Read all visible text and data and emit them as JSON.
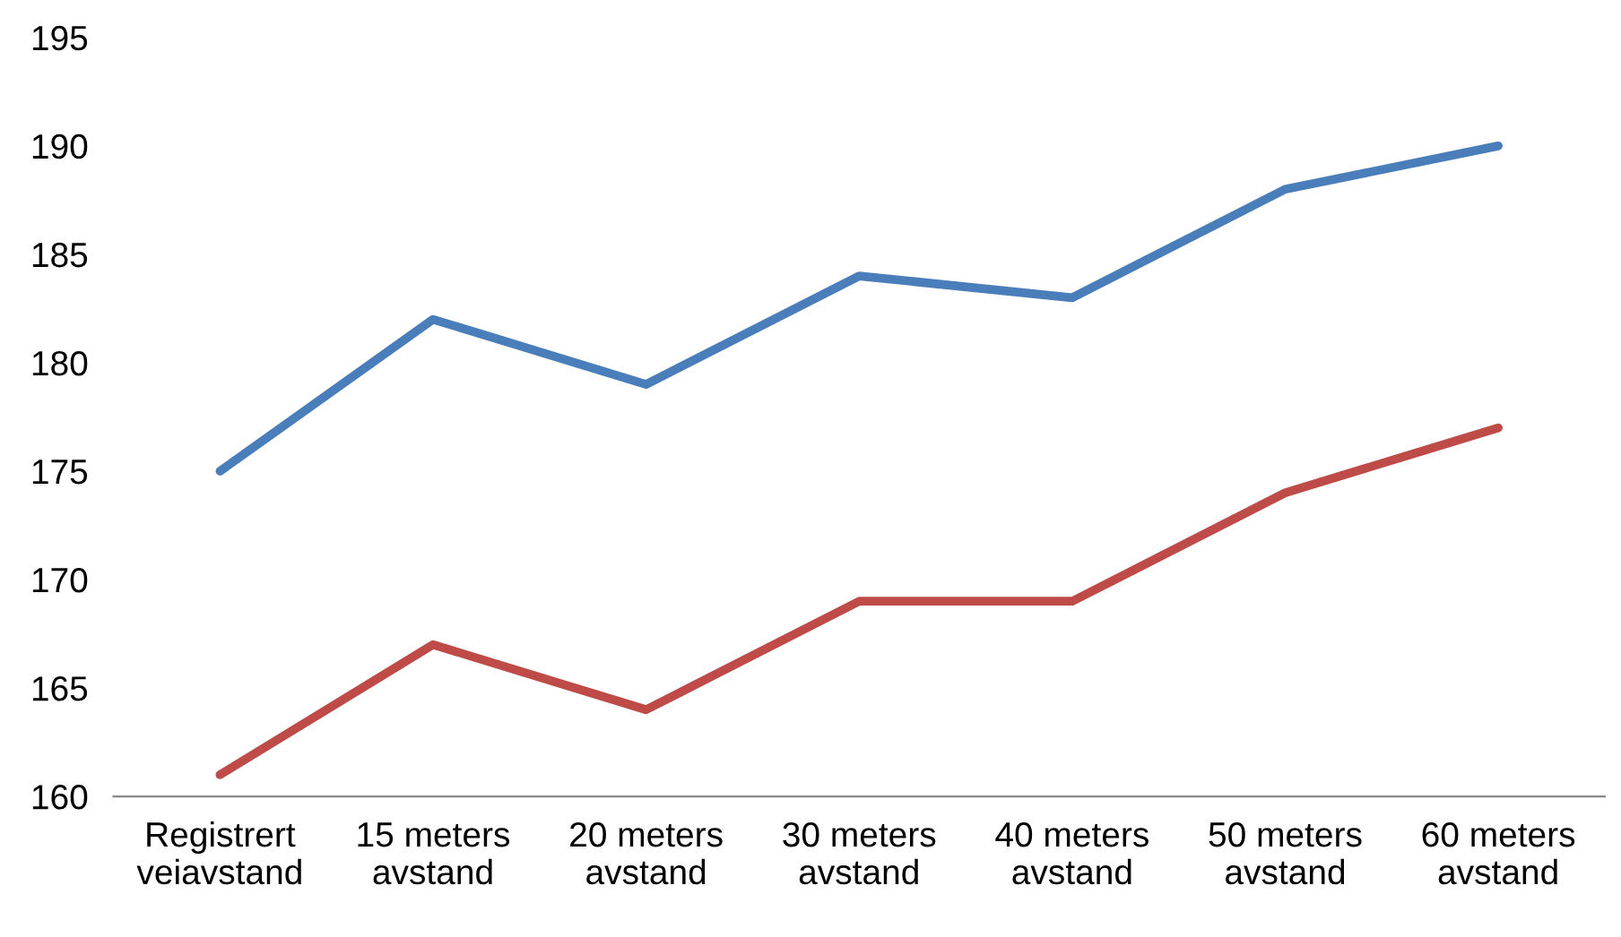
{
  "chart_data": {
    "type": "line",
    "categories": [
      "Registrert\nveiavstand",
      "15 meters\navstand",
      "20 meters\navstand",
      "30 meters\navstand",
      "40 meters\navstand",
      "50 meters\navstand",
      "60 meters\navstand"
    ],
    "series": [
      {
        "color": "#4a7ebb",
        "values": [
          175,
          182,
          179,
          184,
          183,
          188,
          190
        ]
      },
      {
        "color": "#be4b48",
        "values": [
          161,
          167,
          164,
          169,
          169,
          174,
          177
        ]
      }
    ],
    "ylim": [
      160,
      195
    ],
    "yticks": [
      160,
      165,
      170,
      175,
      180,
      185,
      190,
      195
    ],
    "grid": false,
    "legend": false,
    "marker": "none",
    "line_style": "solid"
  }
}
